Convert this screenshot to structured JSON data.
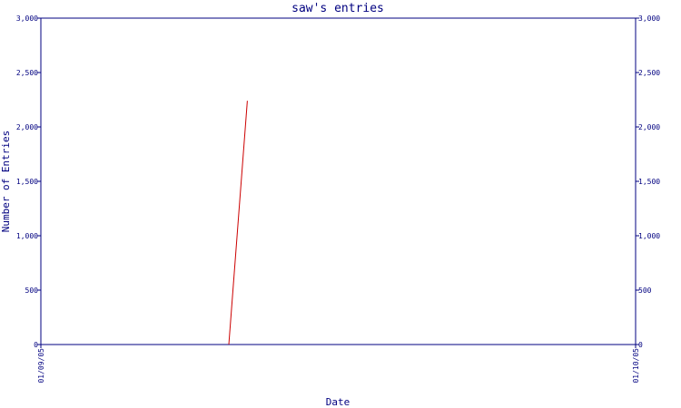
{
  "chart_data": {
    "type": "line",
    "title": "saw's entries",
    "xlabel": "Date",
    "ylabel": "Number of Entries",
    "x_tick_labels": [
      "01/09/05",
      "01/10/05"
    ],
    "xlim": [
      "2005-01-09",
      "2005-01-10"
    ],
    "ylim": [
      0,
      3000
    ],
    "y_ticks": [
      0,
      500,
      1000,
      1500,
      2000,
      2500,
      3000
    ],
    "y_tick_labels": [
      "0",
      "500",
      "1,000",
      "1,500",
      "2,000",
      "2,500",
      "3,000"
    ],
    "y_axis_right": true,
    "grid": false,
    "series": [
      {
        "color": "#cc0000",
        "points": [
          {
            "x": "2005-01-09T07:35",
            "y": 0
          },
          {
            "x": "2005-01-09T08:20",
            "y": 2240
          }
        ]
      }
    ]
  }
}
